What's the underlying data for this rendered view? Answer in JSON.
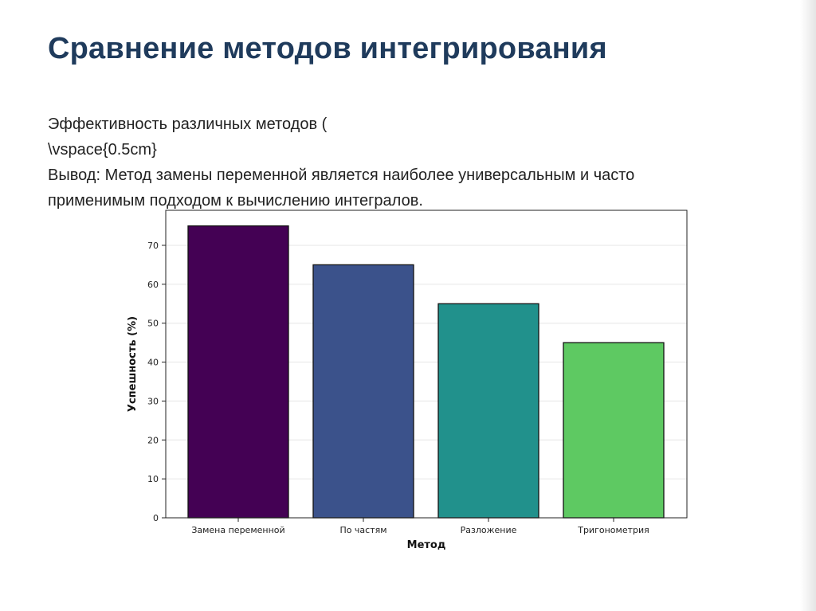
{
  "slide": {
    "title": "Сравнение методов интегрирования",
    "line1": "Эффективность различных методов (",
    "line2": "\\vspace{0.5cm}",
    "line3": "Вывод: Метод замены переменной является наиболее универсальным и часто",
    "line4": "применимым подходом к вычислению интегралов."
  },
  "chart_data": {
    "type": "bar",
    "categories": [
      "Замена переменной",
      "По частям",
      "Разложение",
      "Тригонометрия"
    ],
    "values": [
      75,
      65,
      55,
      45
    ],
    "colors": [
      "#440154",
      "#3b528b",
      "#21918c",
      "#5ec962"
    ],
    "xlabel": "Метод",
    "ylabel": "Успешность (%)",
    "ylim": [
      0,
      79
    ],
    "yticks": [
      0,
      10,
      20,
      30,
      40,
      50,
      60,
      70
    ],
    "grid": "horizontal",
    "legend": "none"
  }
}
